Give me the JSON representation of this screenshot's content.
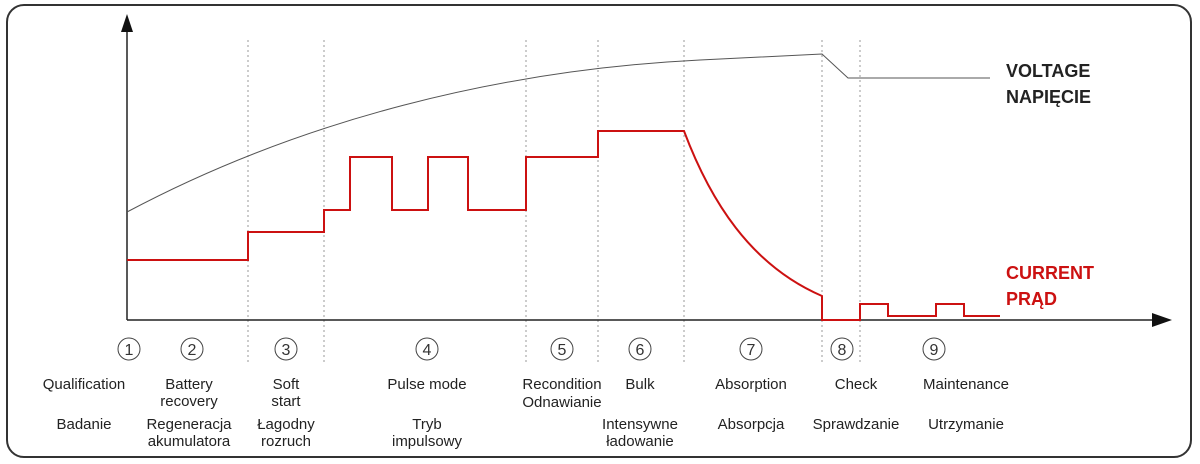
{
  "legend": {
    "voltage": "VOLTAGE\nNAPIĘCIE",
    "current": "CURRENT\nPRĄD",
    "voltage_color": "#222222",
    "current_color": "#cc1111"
  },
  "stages": [
    {
      "num": "1",
      "en": "Qualification",
      "pl": "Badanie"
    },
    {
      "num": "2",
      "en": "Battery\nrecovery",
      "pl": "Regeneracja\nakumulatora"
    },
    {
      "num": "3",
      "en": "Soft\nstart",
      "pl": "Łagodny\nrozruch"
    },
    {
      "num": "4",
      "en": "Pulse mode",
      "pl": "Tryb\nimpulsowy"
    },
    {
      "num": "5",
      "en": "Recondition",
      "pl": "Odnawianie"
    },
    {
      "num": "6",
      "en": "Bulk",
      "pl": "Intensywne\nładowanie"
    },
    {
      "num": "7",
      "en": "Absorption",
      "pl": "Absorpcja"
    },
    {
      "num": "8",
      "en": "Check",
      "pl": "Sprawdzanie"
    },
    {
      "num": "9",
      "en": "Maintenance",
      "pl": "Utrzymanie"
    }
  ]
}
